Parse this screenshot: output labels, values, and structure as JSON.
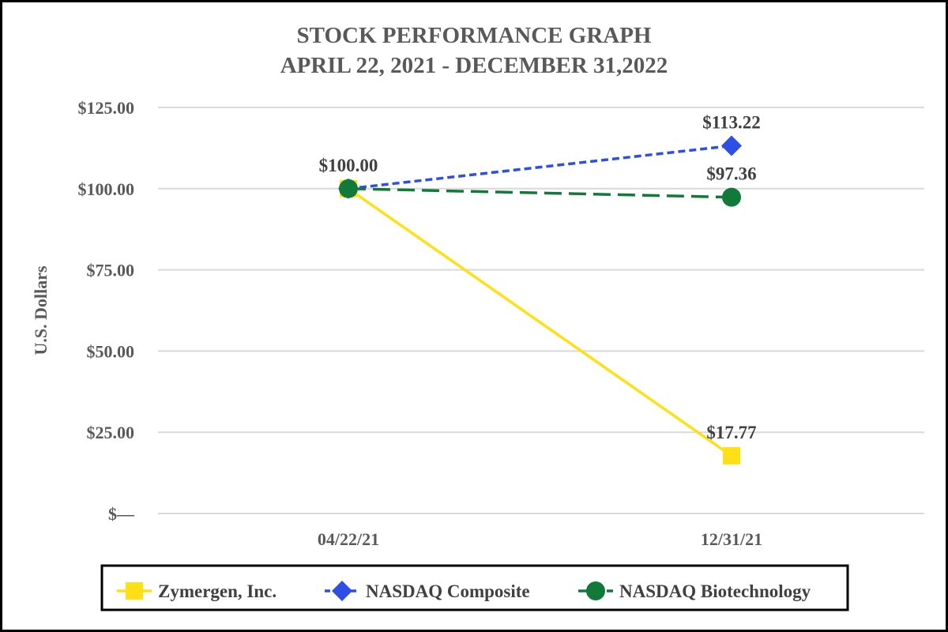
{
  "chart_data": {
    "type": "line",
    "title": [
      "STOCK PERFORMANCE GRAPH",
      "APRIL 22, 2021 - DECEMBER 31,2022"
    ],
    "xlabel": "",
    "ylabel": "U.S. Dollars",
    "categories": [
      "04/22/21",
      "12/31/21"
    ],
    "ylim": [
      0,
      125
    ],
    "yticks": [
      0,
      25,
      50,
      75,
      100,
      125
    ],
    "ytick_labels": [
      "$—",
      "$25.00",
      "$50.00",
      "$75.00",
      "$100.00",
      "$125.00"
    ],
    "grid": true,
    "legend_position": "bottom",
    "series": [
      {
        "name": "Zymergen, Inc.",
        "values": [
          100.0,
          17.77
        ],
        "color": "#FFE014",
        "marker": "square",
        "line_style": "solid",
        "data_labels": [
          "",
          "$17.77"
        ]
      },
      {
        "name": "NASDAQ Composite",
        "values": [
          100.0,
          113.22
        ],
        "color": "#2E4FE6",
        "marker": "diamond",
        "line_style": "short-dash",
        "data_labels": [
          "",
          "$113.22"
        ]
      },
      {
        "name": "NASDAQ Biotechnology",
        "values": [
          100.0,
          97.36
        ],
        "color": "#117A3A",
        "marker": "circle",
        "line_style": "long-dash",
        "data_labels": [
          "$100.00",
          "$97.36"
        ]
      }
    ]
  }
}
